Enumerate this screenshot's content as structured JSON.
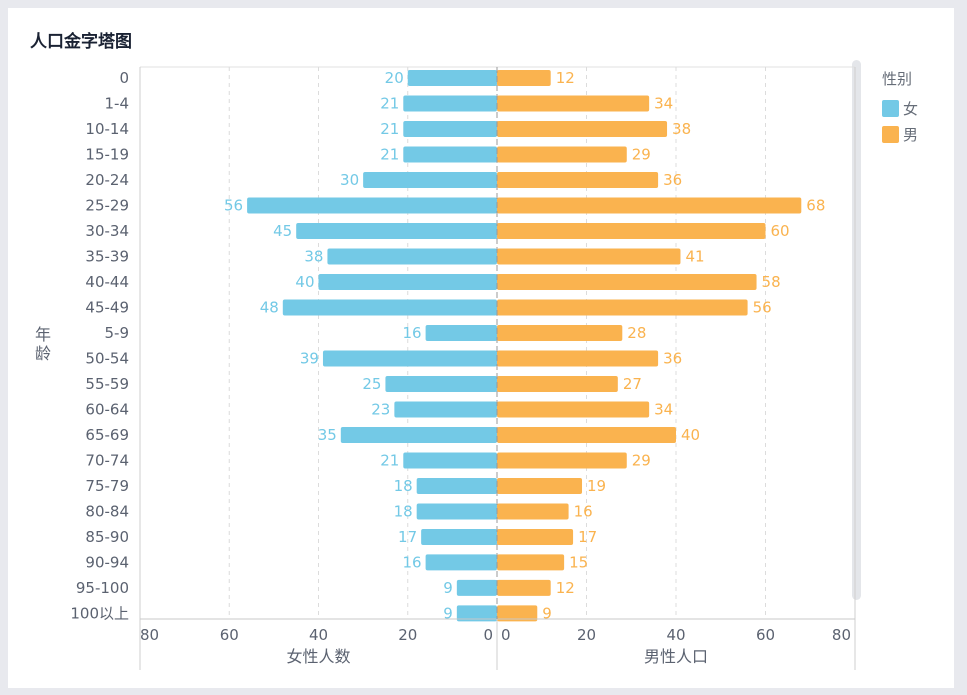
{
  "page": {
    "title": "人口金字塔图"
  },
  "legend": {
    "title": "性别",
    "items": [
      {
        "name": "女",
        "color": "#73c9e6"
      },
      {
        "name": "男",
        "color": "#fab34f"
      }
    ]
  },
  "chart_data": {
    "type": "bar",
    "orientation": "horizontal-population-pyramid",
    "title": "人口金字塔图",
    "ylabel": "年龄",
    "categories": [
      "0",
      "1-4",
      "10-14",
      "15-19",
      "20-24",
      "25-29",
      "30-34",
      "35-39",
      "40-44",
      "45-49",
      "5-9",
      "50-54",
      "55-59",
      "60-64",
      "65-69",
      "70-74",
      "75-79",
      "80-84",
      "85-90",
      "90-94",
      "95-100",
      "100以上"
    ],
    "series": [
      {
        "name": "女",
        "color": "#73c9e6",
        "xlabel": "女性人数",
        "side": "left",
        "values": [
          20,
          21,
          21,
          21,
          30,
          56,
          45,
          38,
          40,
          48,
          16,
          39,
          25,
          23,
          35,
          21,
          18,
          18,
          17,
          16,
          9,
          9
        ]
      },
      {
        "name": "男",
        "color": "#fab34f",
        "xlabel": "男性人口",
        "side": "right",
        "values": [
          12,
          34,
          38,
          29,
          36,
          68,
          60,
          41,
          58,
          56,
          28,
          36,
          27,
          34,
          40,
          29,
          19,
          16,
          17,
          15,
          12,
          9
        ]
      }
    ],
    "xlim_left": [
      80,
      0
    ],
    "xlim_right": [
      0,
      80
    ],
    "xticks_left": [
      "80",
      "60",
      "40",
      "20",
      "0"
    ],
    "xticks_right": [
      "0",
      "20",
      "40",
      "60",
      "80"
    ],
    "grid": "vertical dashed",
    "legend_position": "right",
    "data_labels": true
  }
}
